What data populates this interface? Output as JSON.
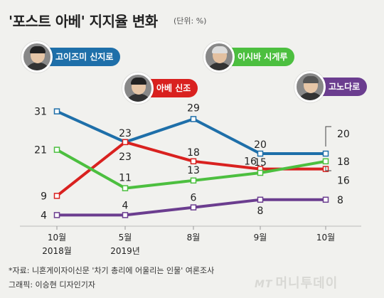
{
  "title": "'포스트 아베' 지지율 변화",
  "unit": "(단위: %)",
  "people": [
    {
      "name": "고이즈미 신지로",
      "color": "#1e6fa9"
    },
    {
      "name": "아베 신조",
      "color": "#d9211f"
    },
    {
      "name": "이시바 시게루",
      "color": "#4cbf3f"
    },
    {
      "name": "고노다로",
      "color": "#6b3d8f"
    }
  ],
  "chart_data": {
    "type": "line",
    "categories": [
      "10월\n2018월",
      "5월\n2019년",
      "8월",
      "9월",
      "10월"
    ],
    "ylim": [
      0,
      35
    ],
    "grid": false,
    "series": [
      {
        "name": "고이즈미 신지로",
        "color": "#1e6fa9",
        "values": [
          31,
          23,
          29,
          20,
          20
        ]
      },
      {
        "name": "아베 신조",
        "color": "#d9211f",
        "values": [
          9,
          23,
          18,
          16,
          16
        ]
      },
      {
        "name": "이시바 시게루",
        "color": "#4cbf3f",
        "values": [
          21,
          11,
          13,
          15,
          18
        ]
      },
      {
        "name": "고노다로",
        "color": "#6b3d8f",
        "values": [
          4,
          4,
          6,
          8,
          8
        ]
      }
    ]
  },
  "footer": {
    "source": "*자료: 니혼게이자이신문 '차기 총리에 어울리는 인물' 여론조사",
    "credit": "그래픽: 이승현 디자인기자"
  },
  "logo": {
    "mark": "MT",
    "text": "머니투데이"
  }
}
